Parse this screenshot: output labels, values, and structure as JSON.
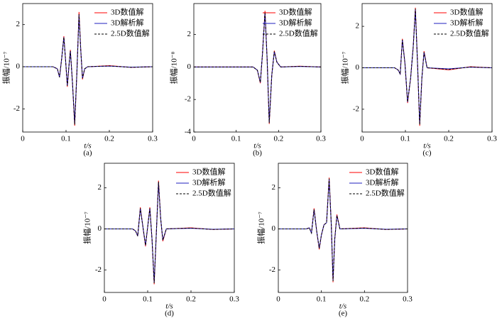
{
  "chart_data": [
    {
      "type": "line",
      "label": "(a)",
      "xlabel": "t/s",
      "ylabel": "振幅/10⁻⁷",
      "legend": "upper right",
      "xlim": [
        0,
        0.3
      ],
      "ylim": [
        -3.1,
        3
      ],
      "xticks": [
        0,
        0.1,
        0.2,
        0.3
      ],
      "yticks": [
        -2,
        0,
        2
      ],
      "x": [
        0,
        0.07,
        0.08,
        0.085,
        0.09,
        0.095,
        0.099,
        0.103,
        0.107,
        0.11,
        0.115,
        0.12,
        0.125,
        0.13,
        0.134,
        0.138,
        0.143,
        0.15,
        0.2,
        0.25,
        0.3
      ],
      "series": [
        {
          "name": "3D数值解",
          "color": "#ff0000",
          "linestyle": "solid",
          "values": [
            0,
            0,
            -0.1,
            -0.5,
            0.4,
            1.45,
            0.3,
            -0.95,
            0.1,
            0.8,
            -0.8,
            -2.8,
            -0.3,
            2.6,
            0.8,
            -0.6,
            -0.1,
            0,
            0.05,
            -0.03,
            0
          ]
        },
        {
          "name": "3D解析解",
          "color": "#1f1fbf",
          "linestyle": "solid",
          "values": [
            0,
            0,
            -0.1,
            -0.5,
            0.4,
            1.4,
            0.3,
            -0.9,
            0.1,
            0.75,
            -0.8,
            -2.7,
            -0.3,
            2.45,
            0.8,
            -0.55,
            -0.1,
            0,
            0.03,
            -0.02,
            0
          ]
        },
        {
          "name": "2.5D数值解",
          "color": "#000000",
          "linestyle": "dashed",
          "values": [
            0,
            0,
            -0.1,
            -0.5,
            0.4,
            1.4,
            0.3,
            -0.9,
            0.1,
            0.75,
            -0.8,
            -2.75,
            -0.3,
            2.5,
            0.8,
            -0.55,
            -0.1,
            0,
            0.04,
            -0.03,
            0
          ]
        }
      ]
    },
    {
      "type": "line",
      "label": "(b)",
      "xlabel": "t/s",
      "ylabel": "振幅/10⁻⁸",
      "legend": "upper right",
      "xlim": [
        0,
        0.3
      ],
      "ylim": [
        -4,
        3.9
      ],
      "xticks": [
        0,
        0.1,
        0.2,
        0.3
      ],
      "yticks": [
        -4,
        -2,
        0,
        2
      ],
      "x": [
        0,
        0.14,
        0.15,
        0.157,
        0.162,
        0.168,
        0.173,
        0.178,
        0.184,
        0.19,
        0.196,
        0.205,
        0.25,
        0.3
      ],
      "series": [
        {
          "name": "3D数值解",
          "color": "#ff0000",
          "linestyle": "solid",
          "values": [
            0,
            0,
            -0.2,
            -1,
            0.8,
            3.45,
            0.5,
            -3.5,
            -0.5,
            1.0,
            0.3,
            0,
            0.05,
            0
          ]
        },
        {
          "name": "3D解析解",
          "color": "#1f1fbf",
          "linestyle": "solid",
          "values": [
            0,
            0,
            -0.2,
            -0.95,
            0.8,
            3.35,
            0.5,
            -3.4,
            -0.5,
            0.95,
            0.3,
            0,
            0.03,
            0
          ]
        },
        {
          "name": "2.5D数值解",
          "color": "#000000",
          "linestyle": "dashed",
          "values": [
            0,
            0,
            -0.2,
            -0.95,
            0.8,
            3.4,
            0.5,
            -3.45,
            -0.5,
            0.95,
            0.3,
            0,
            0.04,
            0
          ]
        }
      ]
    },
    {
      "type": "line",
      "label": "(c)",
      "xlabel": "t/s",
      "ylabel": "振幅/10⁻⁷",
      "legend": "upper right",
      "xlim": [
        0,
        0.3
      ],
      "ylim": [
        -3.1,
        3.1
      ],
      "xticks": [
        0,
        0.1,
        0.2,
        0.3
      ],
      "yticks": [
        -2,
        0,
        2
      ],
      "x": [
        0,
        0.075,
        0.083,
        0.088,
        0.093,
        0.099,
        0.105,
        0.112,
        0.118,
        0.123,
        0.128,
        0.133,
        0.138,
        0.143,
        0.15,
        0.2,
        0.25,
        0.3
      ],
      "series": [
        {
          "name": "3D数值解",
          "color": "#ff0000",
          "linestyle": "solid",
          "values": [
            0,
            0,
            -0.1,
            -0.3,
            1.4,
            0.2,
            -1.7,
            -0.5,
            1.0,
            2.9,
            0.2,
            -2.8,
            -0.5,
            0.8,
            0,
            -0.1,
            0.05,
            0
          ]
        },
        {
          "name": "3D解析解",
          "color": "#1f1fbf",
          "linestyle": "solid",
          "values": [
            0,
            0,
            -0.1,
            -0.3,
            1.35,
            0.2,
            -1.65,
            -0.5,
            1.0,
            2.8,
            0.2,
            -2.7,
            -0.5,
            0.75,
            0,
            -0.05,
            0.03,
            0
          ]
        },
        {
          "name": "2.5D数值解",
          "color": "#000000",
          "linestyle": "dashed",
          "values": [
            0,
            0,
            -0.1,
            -0.3,
            1.35,
            0.2,
            -1.65,
            -0.5,
            1.0,
            2.85,
            0.2,
            -2.75,
            -0.5,
            0.75,
            0,
            -0.08,
            0.04,
            0
          ]
        }
      ]
    },
    {
      "type": "line",
      "label": "(d)",
      "xlabel": "t/s",
      "ylabel": "振幅/10⁻⁷",
      "legend": "upper right",
      "xlim": [
        0,
        0.3
      ],
      "ylim": [
        -3.1,
        3.2
      ],
      "xticks": [
        0,
        0.1,
        0.2,
        0.3
      ],
      "yticks": [
        -2,
        0,
        2
      ],
      "x": [
        0,
        0.065,
        0.072,
        0.077,
        0.083,
        0.089,
        0.095,
        0.1,
        0.105,
        0.11,
        0.115,
        0.12,
        0.125,
        0.13,
        0.135,
        0.143,
        0.2,
        0.25,
        0.3
      ],
      "series": [
        {
          "name": "3D数值解",
          "color": "#ff0000",
          "linestyle": "solid",
          "values": [
            0,
            0,
            -0.1,
            -0.35,
            1.05,
            0.1,
            -0.85,
            0.1,
            1.05,
            -0.5,
            -2.7,
            -0.2,
            2.35,
            0.5,
            -0.6,
            0,
            0.05,
            -0.03,
            0
          ]
        },
        {
          "name": "3D解析解",
          "color": "#1f1fbf",
          "linestyle": "solid",
          "values": [
            0,
            0,
            -0.1,
            -0.35,
            1.0,
            0.1,
            -0.8,
            0.1,
            1.0,
            -0.5,
            -2.6,
            -0.2,
            2.25,
            0.5,
            -0.55,
            0,
            0.03,
            -0.02,
            0
          ]
        },
        {
          "name": "2.5D数值解",
          "color": "#000000",
          "linestyle": "dashed",
          "values": [
            0,
            0,
            -0.1,
            -0.35,
            1.0,
            0.1,
            -0.8,
            0.1,
            1.0,
            -0.5,
            -2.65,
            -0.2,
            2.3,
            0.5,
            -0.55,
            0,
            0.04,
            -0.03,
            0
          ]
        }
      ]
    },
    {
      "type": "line",
      "label": "(e)",
      "xlabel": "t/s",
      "ylabel": "振幅/10⁻⁷",
      "legend": "upper right",
      "xlim": [
        0,
        0.3
      ],
      "ylim": [
        -3.1,
        3.2
      ],
      "xticks": [
        0,
        0.1,
        0.2,
        0.3
      ],
      "yticks": [
        -2,
        0,
        2
      ],
      "x": [
        0,
        0.065,
        0.072,
        0.077,
        0.083,
        0.089,
        0.095,
        0.1,
        0.106,
        0.112,
        0.118,
        0.123,
        0.127,
        0.131,
        0.136,
        0.143,
        0.2,
        0.25,
        0.3
      ],
      "series": [
        {
          "name": "3D数值解",
          "color": "#ff0000",
          "linestyle": "solid",
          "values": [
            0,
            0,
            0.05,
            -0.2,
            1.0,
            -0.1,
            -1.0,
            -0.3,
            0.2,
            0.3,
            2.5,
            0.2,
            -2.6,
            -0.5,
            0.7,
            0,
            0.05,
            -0.03,
            0
          ]
        },
        {
          "name": "3D解析解",
          "color": "#1f1fbf",
          "linestyle": "solid",
          "values": [
            0,
            0,
            0.05,
            -0.2,
            0.95,
            -0.1,
            -0.95,
            -0.3,
            0.2,
            0.3,
            2.4,
            0.2,
            -2.5,
            -0.5,
            0.65,
            0,
            0.03,
            -0.02,
            0
          ]
        },
        {
          "name": "2.5D数值解",
          "color": "#000000",
          "linestyle": "dashed",
          "values": [
            0,
            0,
            0.05,
            -0.2,
            0.95,
            -0.1,
            -0.95,
            -0.3,
            0.2,
            0.3,
            2.45,
            0.2,
            -2.55,
            -0.5,
            0.65,
            0,
            0.04,
            -0.03,
            0
          ]
        }
      ]
    }
  ]
}
